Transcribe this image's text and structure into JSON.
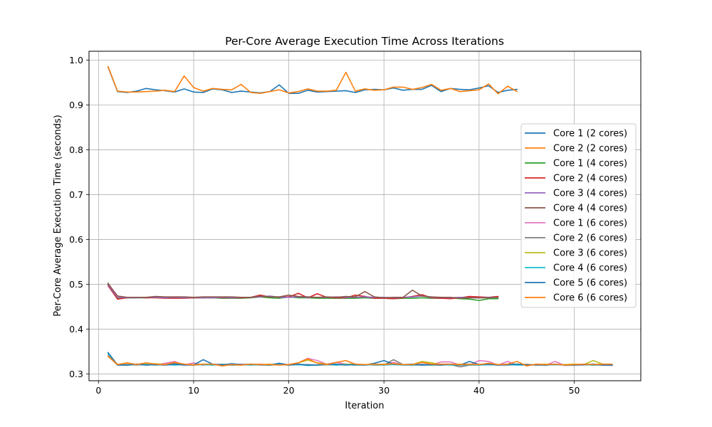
{
  "chart_data": {
    "type": "line",
    "title": "Per-Core Average Execution Time Across Iterations",
    "xlabel": "Iteration",
    "ylabel": "Per-Core Average Execution Time (seconds)",
    "xlim": [
      -1,
      57
    ],
    "ylim": [
      0.285,
      1.02
    ],
    "xticks": [
      0,
      10,
      20,
      30,
      40,
      50
    ],
    "yticks": [
      0.3,
      0.4,
      0.5,
      0.6,
      0.7,
      0.8,
      0.9,
      1.0
    ],
    "ytick_labels": [
      "0.3",
      "0.4",
      "0.5",
      "0.6",
      "0.7",
      "0.8",
      "0.9",
      "1.0"
    ],
    "grid": true,
    "legend_position": "center-right",
    "series": [
      {
        "name": "Core 1 (2 cores)",
        "color": "#1f77b4",
        "x_start": 1,
        "values": [
          0.985,
          0.93,
          0.928,
          0.931,
          0.937,
          0.934,
          0.932,
          0.929,
          0.936,
          0.929,
          0.928,
          0.936,
          0.934,
          0.928,
          0.931,
          0.929,
          0.927,
          0.93,
          0.945,
          0.926,
          0.926,
          0.933,
          0.929,
          0.93,
          0.931,
          0.932,
          0.928,
          0.934,
          0.935,
          0.934,
          0.938,
          0.933,
          0.935,
          0.935,
          0.944,
          0.93,
          0.937,
          0.935,
          0.934,
          0.938,
          0.943,
          0.928,
          0.933,
          0.935
        ]
      },
      {
        "name": "Core 2 (2 cores)",
        "color": "#ff7f0e",
        "x_start": 1,
        "values": [
          0.986,
          0.931,
          0.929,
          0.929,
          0.93,
          0.931,
          0.933,
          0.93,
          0.965,
          0.939,
          0.931,
          0.937,
          0.935,
          0.934,
          0.946,
          0.928,
          0.926,
          0.93,
          0.934,
          0.927,
          0.93,
          0.936,
          0.931,
          0.931,
          0.933,
          0.973,
          0.931,
          0.936,
          0.933,
          0.934,
          0.94,
          0.94,
          0.935,
          0.939,
          0.946,
          0.933,
          0.937,
          0.93,
          0.932,
          0.934,
          0.947,
          0.925,
          0.942,
          0.93
        ]
      },
      {
        "name": "Core 1 (4 cores)",
        "color": "#2ca02c",
        "x_start": 1,
        "values": [
          0.503,
          0.468,
          0.47,
          0.47,
          0.47,
          0.471,
          0.47,
          0.47,
          0.47,
          0.47,
          0.47,
          0.47,
          0.469,
          0.469,
          0.469,
          0.47,
          0.472,
          0.47,
          0.469,
          0.472,
          0.47,
          0.47,
          0.469,
          0.469,
          0.469,
          0.469,
          0.469,
          0.47,
          0.469,
          0.469,
          0.468,
          0.469,
          0.469,
          0.47,
          0.469,
          0.469,
          0.47,
          0.468,
          0.467,
          0.464,
          0.468,
          0.468
        ]
      },
      {
        "name": "Core 2 (4 cores)",
        "color": "#d62728",
        "x_start": 1,
        "values": [
          0.497,
          0.467,
          0.47,
          0.471,
          0.47,
          0.47,
          0.469,
          0.469,
          0.469,
          0.47,
          0.47,
          0.471,
          0.47,
          0.47,
          0.47,
          0.471,
          0.476,
          0.472,
          0.472,
          0.472,
          0.48,
          0.47,
          0.479,
          0.471,
          0.47,
          0.47,
          0.476,
          0.473,
          0.469,
          0.469,
          0.468,
          0.47,
          0.473,
          0.477,
          0.47,
          0.469,
          0.468,
          0.47,
          0.473,
          0.472,
          0.471,
          0.473
        ]
      },
      {
        "name": "Core 3 (4 cores)",
        "color": "#9467bd",
        "x_start": 1,
        "values": [
          0.499,
          0.471,
          0.47,
          0.47,
          0.471,
          0.471,
          0.47,
          0.471,
          0.47,
          0.471,
          0.47,
          0.47,
          0.471,
          0.47,
          0.471,
          0.471,
          0.472,
          0.474,
          0.471,
          0.471,
          0.472,
          0.471,
          0.471,
          0.471,
          0.472,
          0.471,
          0.471,
          0.472,
          0.471,
          0.471,
          0.47,
          0.471,
          0.472,
          0.474,
          0.471,
          0.471,
          0.47,
          0.471,
          0.47,
          0.47,
          0.471,
          0.471
        ]
      },
      {
        "name": "Core 4 (4 cores)",
        "color": "#8c564b",
        "x_start": 1,
        "values": [
          0.502,
          0.474,
          0.471,
          0.471,
          0.471,
          0.473,
          0.472,
          0.472,
          0.472,
          0.471,
          0.472,
          0.472,
          0.472,
          0.472,
          0.471,
          0.471,
          0.474,
          0.472,
          0.472,
          0.476,
          0.473,
          0.472,
          0.471,
          0.472,
          0.471,
          0.473,
          0.472,
          0.484,
          0.472,
          0.47,
          0.471,
          0.471,
          0.487,
          0.474,
          0.472,
          0.471,
          0.471,
          0.469,
          0.47,
          0.47,
          0.47,
          0.471
        ]
      },
      {
        "name": "Core 1 (6 cores)",
        "color": "#e377c2",
        "x_start": 1,
        "values": [
          0.341,
          0.321,
          0.322,
          0.32,
          0.322,
          0.32,
          0.324,
          0.328,
          0.32,
          0.325,
          0.32,
          0.322,
          0.321,
          0.32,
          0.322,
          0.32,
          0.322,
          0.32,
          0.323,
          0.321,
          0.325,
          0.335,
          0.33,
          0.322,
          0.326,
          0.322,
          0.322,
          0.32,
          0.321,
          0.321,
          0.326,
          0.32,
          0.32,
          0.322,
          0.32,
          0.327,
          0.327,
          0.32,
          0.32,
          0.33,
          0.328,
          0.32,
          0.328,
          0.32,
          0.322,
          0.32,
          0.32,
          0.328,
          0.319,
          0.32,
          0.32,
          0.322,
          0.32,
          0.319
        ]
      },
      {
        "name": "Core 2 (6 cores)",
        "color": "#7f7f7f",
        "x_start": 1,
        "values": [
          0.34,
          0.32,
          0.32,
          0.321,
          0.32,
          0.321,
          0.32,
          0.324,
          0.321,
          0.32,
          0.321,
          0.32,
          0.322,
          0.32,
          0.32,
          0.321,
          0.32,
          0.32,
          0.321,
          0.32,
          0.321,
          0.321,
          0.32,
          0.321,
          0.32,
          0.321,
          0.32,
          0.321,
          0.32,
          0.32,
          0.332,
          0.321,
          0.32,
          0.32,
          0.32,
          0.32,
          0.321,
          0.316,
          0.32,
          0.32,
          0.321,
          0.32,
          0.32,
          0.321,
          0.32,
          0.32,
          0.32,
          0.321,
          0.32,
          0.32,
          0.321,
          0.32,
          0.32,
          0.32
        ]
      },
      {
        "name": "Core 3 (6 cores)",
        "color": "#bcbd22",
        "x_start": 1,
        "values": [
          0.339,
          0.322,
          0.321,
          0.322,
          0.322,
          0.323,
          0.321,
          0.322,
          0.321,
          0.321,
          0.322,
          0.321,
          0.321,
          0.322,
          0.321,
          0.322,
          0.321,
          0.322,
          0.321,
          0.321,
          0.325,
          0.331,
          0.325,
          0.322,
          0.321,
          0.322,
          0.322,
          0.321,
          0.321,
          0.322,
          0.322,
          0.321,
          0.321,
          0.328,
          0.325,
          0.321,
          0.321,
          0.322,
          0.321,
          0.321,
          0.322,
          0.321,
          0.321,
          0.322,
          0.321,
          0.321,
          0.322,
          0.321,
          0.321,
          0.322,
          0.321,
          0.33,
          0.322,
          0.321
        ]
      },
      {
        "name": "Core 4 (6 cores)",
        "color": "#17becf",
        "x_start": 1,
        "values": [
          0.345,
          0.321,
          0.32,
          0.321,
          0.321,
          0.32,
          0.321,
          0.32,
          0.321,
          0.32,
          0.321,
          0.32,
          0.321,
          0.32,
          0.321,
          0.32,
          0.321,
          0.32,
          0.321,
          0.32,
          0.321,
          0.319,
          0.32,
          0.321,
          0.32,
          0.321,
          0.32,
          0.32,
          0.321,
          0.32,
          0.321,
          0.32,
          0.32,
          0.321,
          0.32,
          0.321,
          0.32,
          0.32,
          0.321,
          0.32,
          0.321,
          0.32,
          0.321,
          0.32,
          0.32,
          0.321,
          0.32,
          0.321,
          0.32,
          0.32,
          0.321,
          0.32,
          0.321,
          0.32
        ]
      },
      {
        "name": "Core 5 (6 cores)",
        "color": "#1f77b4",
        "x_start": 1,
        "values": [
          0.348,
          0.32,
          0.32,
          0.322,
          0.32,
          0.321,
          0.32,
          0.322,
          0.32,
          0.32,
          0.332,
          0.322,
          0.32,
          0.323,
          0.321,
          0.322,
          0.321,
          0.32,
          0.324,
          0.32,
          0.322,
          0.32,
          0.32,
          0.321,
          0.322,
          0.32,
          0.321,
          0.32,
          0.324,
          0.33,
          0.322,
          0.321,
          0.322,
          0.32,
          0.321,
          0.32,
          0.322,
          0.32,
          0.328,
          0.321,
          0.322,
          0.32,
          0.321,
          0.322,
          0.32,
          0.321,
          0.32,
          0.322,
          0.32,
          0.32,
          0.321,
          0.322,
          0.32,
          0.32
        ]
      },
      {
        "name": "Core 6 (6 cores)",
        "color": "#ff7f0e",
        "x_start": 1,
        "values": [
          0.34,
          0.321,
          0.325,
          0.321,
          0.325,
          0.322,
          0.321,
          0.326,
          0.322,
          0.32,
          0.322,
          0.322,
          0.318,
          0.321,
          0.32,
          0.322,
          0.321,
          0.321,
          0.32,
          0.321,
          0.325,
          0.334,
          0.324,
          0.321,
          0.326,
          0.33,
          0.322,
          0.321,
          0.322,
          0.321,
          0.323,
          0.321,
          0.321,
          0.326,
          0.322,
          0.322,
          0.322,
          0.321,
          0.322,
          0.321,
          0.324,
          0.321,
          0.322,
          0.328,
          0.318,
          0.322,
          0.321,
          0.322,
          0.32,
          0.321,
          0.322,
          0.321,
          0.322,
          0.322
        ]
      }
    ]
  }
}
